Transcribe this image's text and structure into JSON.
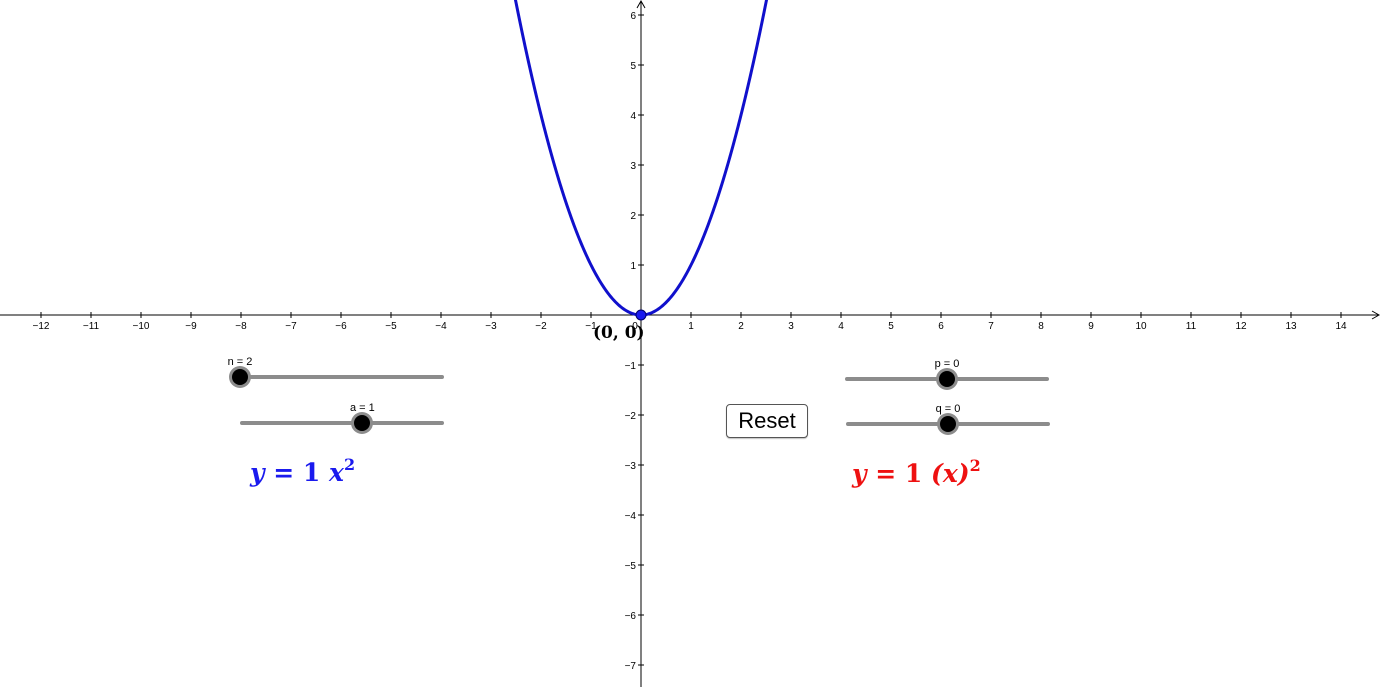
{
  "graph": {
    "x_ticks": [
      "−12",
      "−11",
      "−10",
      "−9",
      "−8",
      "−7",
      "−6",
      "−5",
      "−4",
      "−3",
      "−2",
      "−1",
      "0",
      "1",
      "2",
      "3",
      "4",
      "5",
      "6",
      "7",
      "8",
      "9",
      "10",
      "11",
      "12",
      "13",
      "14"
    ],
    "y_ticks": [
      "6",
      "5",
      "4",
      "3",
      "2",
      "1",
      "−1",
      "−2",
      "−3",
      "−4",
      "−5",
      "−6",
      "−7"
    ],
    "x_range": [
      -12.8,
      14.8
    ],
    "y_range": [
      -7.4,
      6.3
    ],
    "curve_color": "#1010cc",
    "parabola": {
      "a": 1,
      "n": 2,
      "p": 0,
      "q": 0
    },
    "vertex": {
      "x": 0,
      "y": 0
    }
  },
  "point_label": "(0, 0)",
  "sliders": {
    "n": {
      "caption": "n = 2",
      "value": 2,
      "min": 2,
      "max": 10
    },
    "a": {
      "caption": "a = 1",
      "value": 1,
      "min": -5,
      "max": 5
    },
    "p": {
      "caption": "p = 0",
      "value": 0,
      "min": -10,
      "max": 10
    },
    "q": {
      "caption": "q = 0",
      "value": 0,
      "min": -10,
      "max": 10
    }
  },
  "reset_label": "Reset",
  "formula_left": {
    "lhs": "y",
    "eq": "=",
    "coef": "1",
    "var": "x",
    "exp": "2",
    "color": "#1a1aee"
  },
  "formula_right": {
    "lhs": "y",
    "eq": "=",
    "coef": "1",
    "var": "(x)",
    "exp": "2",
    "color": "#ee1111"
  }
}
